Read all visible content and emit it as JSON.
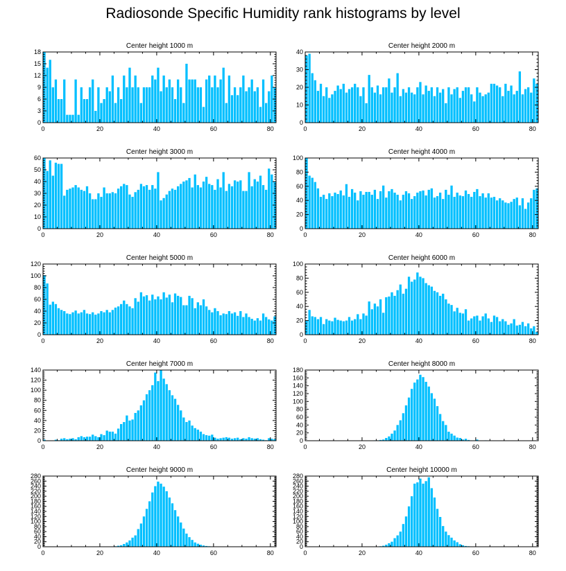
{
  "title": "Radiosonde Specific Humidity rank histograms by level",
  "bar_color": "#00bfff",
  "chart_data": [
    {
      "type": "bar",
      "title": "Center height 1000 m",
      "xlim": [
        0,
        82
      ],
      "ylim": [
        0,
        18
      ],
      "xticks": [
        0,
        20,
        40,
        60,
        80
      ],
      "yticks": [
        0,
        3,
        6,
        9,
        12,
        15,
        18
      ],
      "values": [
        18,
        14,
        16,
        9,
        11,
        6,
        6,
        11,
        2,
        2,
        2,
        11,
        2,
        9,
        6,
        6,
        9,
        11,
        3,
        9,
        5,
        6,
        9,
        8,
        12,
        5,
        9,
        6,
        12,
        9,
        14,
        9,
        12,
        9,
        5,
        9,
        9,
        9,
        12,
        11,
        14,
        8,
        12,
        9,
        11,
        9,
        6,
        11,
        9,
        5,
        15,
        11,
        11,
        11,
        9,
        9,
        4,
        11,
        12,
        9,
        12,
        9,
        11,
        14,
        5,
        12,
        7,
        9,
        7,
        9,
        12,
        8,
        9,
        11,
        8,
        9,
        4,
        11,
        5,
        8,
        12,
        9
      ]
    },
    {
      "type": "bar",
      "title": "Center height 2000 m",
      "xlim": [
        0,
        82
      ],
      "ylim": [
        0,
        40
      ],
      "xticks": [
        0,
        20,
        40,
        60,
        80
      ],
      "yticks": [
        0,
        10,
        20,
        30,
        40
      ],
      "values": [
        38,
        39,
        28,
        24,
        18,
        22,
        15,
        20,
        14,
        16,
        18,
        21,
        19,
        22,
        17,
        19,
        20,
        22,
        20,
        15,
        20,
        11,
        27,
        20,
        17,
        21,
        16,
        20,
        20,
        25,
        17,
        20,
        28,
        15,
        19,
        17,
        20,
        17,
        16,
        20,
        23,
        16,
        21,
        18,
        20,
        15,
        20,
        17,
        19,
        11,
        20,
        16,
        19,
        20,
        14,
        18,
        20,
        20,
        16,
        12,
        20,
        17,
        15,
        16,
        17,
        22,
        22,
        21,
        20,
        15,
        22,
        18,
        21,
        16,
        18,
        29,
        16,
        19,
        20,
        17,
        25,
        22
      ]
    },
    {
      "type": "bar",
      "title": "Center height 3000 m",
      "xlim": [
        0,
        82
      ],
      "ylim": [
        0,
        60
      ],
      "xticks": [
        0,
        20,
        40,
        60,
        80
      ],
      "yticks": [
        0,
        10,
        20,
        30,
        40,
        50,
        60
      ],
      "values": [
        60,
        49,
        58,
        45,
        56,
        55,
        55,
        28,
        33,
        34,
        35,
        37,
        35,
        33,
        32,
        36,
        30,
        25,
        25,
        30,
        27,
        35,
        30,
        30,
        31,
        30,
        34,
        36,
        38,
        37,
        29,
        27,
        31,
        33,
        38,
        36,
        37,
        33,
        37,
        34,
        48,
        24,
        26,
        29,
        32,
        34,
        33,
        36,
        38,
        40,
        41,
        43,
        35,
        46,
        37,
        35,
        40,
        44,
        38,
        37,
        33,
        42,
        35,
        48,
        32,
        38,
        36,
        41,
        40,
        41,
        32,
        32,
        48,
        36,
        42,
        40,
        45,
        37,
        33,
        51,
        46,
        40
      ]
    },
    {
      "type": "bar",
      "title": "Center height 4000 m",
      "xlim": [
        0,
        82
      ],
      "ylim": [
        0,
        100
      ],
      "xticks": [
        0,
        20,
        40,
        60,
        80
      ],
      "yticks": [
        0,
        20,
        40,
        60,
        80,
        100
      ],
      "values": [
        100,
        75,
        72,
        66,
        57,
        45,
        48,
        42,
        50,
        46,
        51,
        49,
        54,
        47,
        63,
        45,
        56,
        51,
        40,
        53,
        48,
        52,
        52,
        48,
        55,
        42,
        53,
        61,
        44,
        53,
        56,
        51,
        48,
        40,
        48,
        53,
        50,
        42,
        46,
        51,
        53,
        54,
        47,
        55,
        57,
        44,
        46,
        51,
        42,
        55,
        48,
        61,
        45,
        51,
        47,
        46,
        54,
        49,
        45,
        52,
        56,
        46,
        50,
        44,
        50,
        44,
        45,
        40,
        43,
        40,
        37,
        36,
        38,
        42,
        44,
        33,
        43,
        28,
        37,
        43,
        55,
        57
      ]
    },
    {
      "type": "bar",
      "title": "Center height 5000 m",
      "xlim": [
        0,
        82
      ],
      "ylim": [
        0,
        120
      ],
      "xticks": [
        0,
        20,
        40,
        60,
        80
      ],
      "yticks": [
        0,
        20,
        40,
        60,
        80,
        100,
        120
      ],
      "values": [
        101,
        87,
        51,
        56,
        52,
        45,
        42,
        40,
        36,
        35,
        38,
        41,
        36,
        38,
        42,
        36,
        35,
        38,
        34,
        36,
        40,
        38,
        42,
        38,
        42,
        46,
        48,
        52,
        58,
        52,
        48,
        45,
        62,
        56,
        72,
        65,
        67,
        58,
        68,
        60,
        65,
        60,
        72,
        63,
        68,
        55,
        70,
        66,
        64,
        50,
        50,
        66,
        62,
        45,
        55,
        50,
        60,
        48,
        42,
        38,
        45,
        40,
        33,
        36,
        35,
        40,
        36,
        38,
        32,
        40,
        30,
        36,
        30,
        27,
        24,
        28,
        24,
        36,
        30,
        26,
        24,
        31
      ]
    },
    {
      "type": "bar",
      "title": "Center height 6000 m",
      "xlim": [
        0,
        82
      ],
      "ylim": [
        0,
        100
      ],
      "xticks": [
        0,
        20,
        40,
        60,
        80
      ],
      "yticks": [
        0,
        20,
        40,
        60,
        80,
        100
      ],
      "values": [
        20,
        35,
        26,
        25,
        22,
        25,
        15,
        22,
        20,
        19,
        24,
        21,
        20,
        19,
        20,
        25,
        20,
        22,
        29,
        22,
        30,
        27,
        47,
        36,
        44,
        40,
        50,
        31,
        53,
        54,
        60,
        55,
        63,
        71,
        58,
        65,
        82,
        75,
        78,
        88,
        82,
        80,
        73,
        70,
        68,
        62,
        60,
        55,
        58,
        50,
        44,
        42,
        33,
        38,
        31,
        30,
        36,
        20,
        23,
        26,
        27,
        20,
        26,
        30,
        23,
        18,
        27,
        25,
        19,
        22,
        19,
        14,
        16,
        22,
        13,
        14,
        18,
        12,
        16,
        9,
        12,
        4
      ]
    },
    {
      "type": "bar",
      "title": "Center height 7000 m",
      "xlim": [
        0,
        82
      ],
      "ylim": [
        0,
        140
      ],
      "xticks": [
        0,
        20,
        40,
        60,
        80
      ],
      "yticks": [
        0,
        20,
        40,
        60,
        80,
        100,
        120,
        140
      ],
      "values": [
        2,
        0,
        0,
        0,
        2,
        1,
        4,
        5,
        3,
        4,
        5,
        3,
        7,
        9,
        7,
        8,
        8,
        12,
        9,
        7,
        13,
        11,
        20,
        18,
        18,
        14,
        24,
        33,
        37,
        50,
        40,
        42,
        55,
        60,
        70,
        80,
        92,
        100,
        110,
        135,
        118,
        140,
        123,
        112,
        100,
        90,
        83,
        71,
        60,
        46,
        37,
        40,
        30,
        25,
        22,
        18,
        13,
        11,
        10,
        12,
        6,
        4,
        5,
        6,
        7,
        6,
        4,
        5,
        6,
        3,
        5,
        4,
        7,
        5,
        4,
        5,
        3,
        2,
        1,
        5,
        4,
        3
      ]
    },
    {
      "type": "bar",
      "title": "Center height 8000 m",
      "xlim": [
        0,
        82
      ],
      "ylim": [
        0,
        180
      ],
      "xticks": [
        0,
        20,
        40,
        60,
        80
      ],
      "yticks": [
        0,
        20,
        40,
        60,
        80,
        100,
        120,
        140,
        160,
        180
      ],
      "values": [
        0,
        0,
        0,
        0,
        0,
        0,
        0,
        0,
        0,
        0,
        0,
        0,
        0,
        0,
        0,
        0,
        0,
        0,
        0,
        0,
        0,
        0,
        0,
        0,
        1,
        1,
        2,
        3,
        7,
        11,
        18,
        26,
        40,
        52,
        70,
        90,
        110,
        132,
        148,
        156,
        168,
        162,
        150,
        138,
        121,
        107,
        88,
        68,
        50,
        40,
        23,
        18,
        13,
        8,
        7,
        3,
        5,
        2,
        1,
        1,
        3,
        0,
        0,
        1,
        0,
        0,
        0,
        0,
        0,
        0,
        0,
        0,
        0,
        0,
        0,
        0,
        0,
        0,
        0,
        0,
        0,
        0
      ]
    },
    {
      "type": "bar",
      "title": "Center height 9000 m",
      "xlim": [
        0,
        82
      ],
      "ylim": [
        0,
        280
      ],
      "xticks": [
        0,
        20,
        40,
        60,
        80
      ],
      "yticks": [
        0,
        20,
        40,
        60,
        80,
        100,
        120,
        140,
        160,
        180,
        200,
        220,
        240,
        260,
        280
      ],
      "values": [
        0,
        0,
        0,
        0,
        0,
        0,
        0,
        0,
        0,
        0,
        0,
        0,
        0,
        0,
        0,
        0,
        0,
        0,
        0,
        0,
        0,
        0,
        0,
        0,
        1,
        2,
        4,
        6,
        11,
        17,
        25,
        36,
        45,
        70,
        92,
        120,
        150,
        180,
        215,
        240,
        258,
        250,
        238,
        220,
        195,
        172,
        145,
        120,
        96,
        72,
        52,
        38,
        27,
        17,
        12,
        8,
        5,
        3,
        2,
        1,
        0,
        0,
        0,
        0,
        0,
        0,
        0,
        0,
        0,
        0,
        0,
        0,
        0,
        0,
        0,
        0,
        0,
        0,
        0,
        0,
        0,
        0
      ]
    },
    {
      "type": "bar",
      "title": "Center height 10000 m",
      "xlim": [
        0,
        82
      ],
      "ylim": [
        0,
        280
      ],
      "xticks": [
        0,
        20,
        40,
        60,
        80
      ],
      "yticks": [
        0,
        20,
        40,
        60,
        80,
        100,
        120,
        140,
        160,
        180,
        200,
        220,
        240,
        260,
        280
      ],
      "values": [
        0,
        0,
        0,
        0,
        0,
        0,
        0,
        0,
        0,
        0,
        0,
        0,
        0,
        0,
        0,
        0,
        0,
        0,
        0,
        0,
        0,
        0,
        0,
        0,
        0,
        1,
        2,
        4,
        8,
        14,
        20,
        34,
        45,
        60,
        90,
        120,
        160,
        200,
        250,
        255,
        270,
        250,
        260,
        275,
        232,
        195,
        150,
        118,
        82,
        60,
        46,
        36,
        25,
        18,
        10,
        6,
        3,
        2,
        1,
        0,
        0,
        0,
        0,
        0,
        0,
        0,
        0,
        0,
        0,
        0,
        0,
        0,
        0,
        0,
        0,
        0,
        0,
        0,
        0,
        0,
        0,
        0
      ]
    }
  ]
}
